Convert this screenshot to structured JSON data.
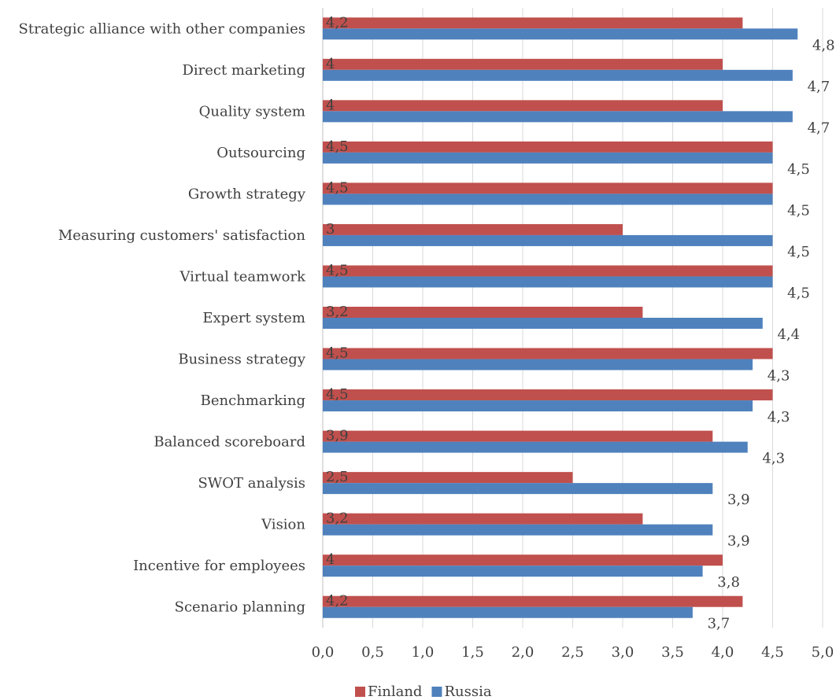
{
  "chart_data": {
    "type": "bar",
    "orientation": "horizontal",
    "title": "",
    "xlabel": "",
    "ylabel": "",
    "xlim": [
      0,
      5
    ],
    "x_ticks": [
      "0,0",
      "0,5",
      "1,0",
      "1,5",
      "2,0",
      "2,5",
      "3,0",
      "3,5",
      "4,0",
      "4,5",
      "5,0"
    ],
    "grid": true,
    "legend_position": "bottom",
    "categories": [
      "Strategic alliance with other companies",
      "Direct marketing",
      "Quality system",
      "Outsourcing",
      "Growth strategy",
      "Measuring customers' satisfaction",
      "Virtual teamwork",
      "Expert system",
      "Business strategy",
      "Benchmarking",
      "Balanced scoreboard",
      "SWOT analysis",
      "Vision",
      "Incentive for employees",
      "Scenario planning"
    ],
    "series": [
      {
        "name": "Finland",
        "color": "#c0504d",
        "values": [
          4.2,
          4,
          4,
          4.5,
          4.5,
          3,
          4.5,
          3.2,
          4.5,
          4.5,
          3.9,
          2.5,
          3.2,
          4,
          4.2
        ],
        "labels": [
          "4,2",
          "4",
          "4",
          "4,5",
          "4,5",
          "3",
          "4,5",
          "3,2",
          "4,5",
          "4,5",
          "3,9",
          "2,5",
          "3,2",
          "4",
          "4,2"
        ]
      },
      {
        "name": "Russia",
        "color": "#4f81bd",
        "values": [
          4.75,
          4.7,
          4.7,
          4.5,
          4.5,
          4.5,
          4.5,
          4.4,
          4.3,
          4.3,
          4.25,
          3.9,
          3.9,
          3.8,
          3.7
        ],
        "labels": [
          "4,8",
          "4,7",
          "4,7",
          "4,5",
          "4,5",
          "4,5",
          "4,5",
          "4,4",
          "4,3",
          "4,3",
          "4,3",
          "3,9",
          "3,9",
          "3,8",
          "3,7"
        ]
      }
    ]
  }
}
